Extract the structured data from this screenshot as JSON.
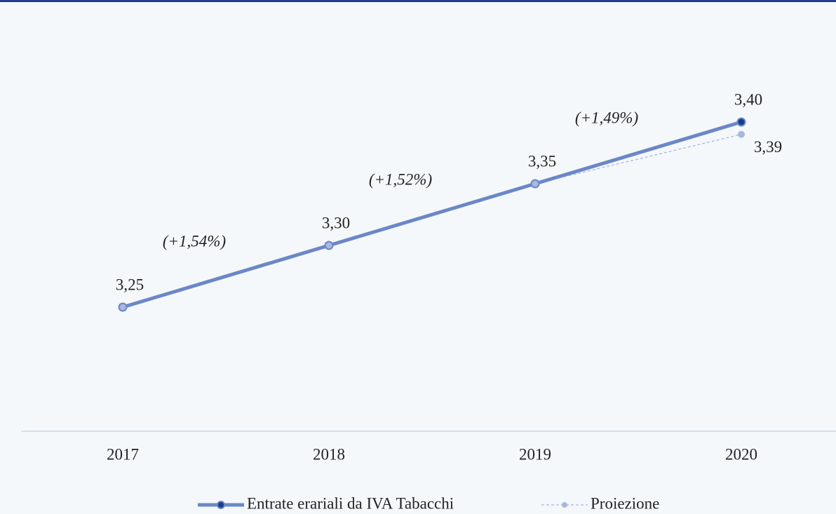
{
  "chart_data": {
    "type": "line",
    "categories": [
      "2017",
      "2018",
      "2019",
      "2020"
    ],
    "series": [
      {
        "name": "Entrate erariali da IVA Tabacchi",
        "color": "#6b87c7",
        "marker_color": "#a8b7dc",
        "highlight_color": "#1a3c8e",
        "values": [
          3.25,
          3.3,
          3.35,
          3.4
        ],
        "value_labels": [
          "3,25",
          "3,30",
          "3,35",
          "3,40"
        ]
      },
      {
        "name": "Proiezione",
        "color": "#a8b7dc",
        "dashed": true,
        "values": [
          null,
          null,
          3.35,
          3.39
        ],
        "value_labels": [
          null,
          null,
          null,
          "3,39"
        ]
      }
    ],
    "annotations": [
      "(+1,54%)",
      "(+1,52%)",
      "(+1,49%)"
    ],
    "ylim": [
      3.15,
      3.45
    ]
  }
}
